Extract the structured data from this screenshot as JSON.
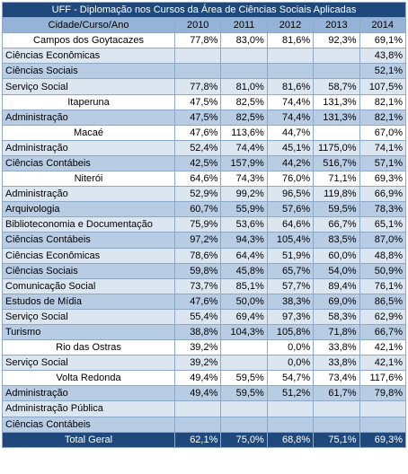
{
  "title": "UFF - Diplomação nos Cursos da Área de Ciências Sociais Aplicadas",
  "header": [
    "Cidade/Curso/Ano",
    "2010",
    "2011",
    "2012",
    "2013",
    "2014"
  ],
  "cities": [
    {
      "name": "Campos dos Goytacazes",
      "values": [
        "77,8%",
        "83,0%",
        "81,6%",
        "92,3%",
        "69,1%"
      ],
      "courses": [
        {
          "name": "Ciências Econômicas",
          "values": [
            null,
            null,
            null,
            null,
            "43,8%"
          ]
        },
        {
          "name": "Ciências Sociais",
          "values": [
            null,
            null,
            null,
            null,
            "52,1%"
          ]
        },
        {
          "name": "Serviço Social",
          "values": [
            "77,8%",
            "81,0%",
            "81,6%",
            "58,7%",
            "107,5%"
          ]
        }
      ]
    },
    {
      "name": "Itaperuna",
      "values": [
        "47,5%",
        "82,5%",
        "74,4%",
        "131,3%",
        "82,1%"
      ],
      "courses": [
        {
          "name": "Administração",
          "values": [
            "47,5%",
            "82,5%",
            "74,4%",
            "131,3%",
            "82,1%"
          ]
        }
      ]
    },
    {
      "name": "Macaé",
      "values": [
        "47,6%",
        "113,6%",
        "44,7%",
        null,
        "67,0%"
      ],
      "courses": [
        {
          "name": "Administração",
          "values": [
            "52,4%",
            "74,4%",
            "45,1%",
            "1175,0%",
            "74,1%"
          ]
        },
        {
          "name": "Ciências Contábeis",
          "values": [
            "42,5%",
            "157,9%",
            "44,2%",
            "516,7%",
            "57,1%"
          ]
        }
      ]
    },
    {
      "name": "Niterói",
      "values": [
        "64,6%",
        "74,3%",
        "76,0%",
        "71,1%",
        "69,3%"
      ],
      "courses": [
        {
          "name": "Administração",
          "values": [
            "52,9%",
            "99,2%",
            "96,5%",
            "119,8%",
            "66,9%"
          ]
        },
        {
          "name": "Arquivologia",
          "values": [
            "60,7%",
            "55,9%",
            "57,6%",
            "59,5%",
            "78,3%"
          ]
        },
        {
          "name": "Biblioteconomia e Documentação",
          "values": [
            "75,9%",
            "53,6%",
            "64,6%",
            "66,7%",
            "65,1%"
          ]
        },
        {
          "name": "Ciências Contábeis",
          "values": [
            "97,2%",
            "94,3%",
            "105,4%",
            "83,5%",
            "87,0%"
          ]
        },
        {
          "name": "Ciências Econômicas",
          "values": [
            "78,6%",
            "64,4%",
            "51,9%",
            "60,0%",
            "48,8%"
          ]
        },
        {
          "name": "Ciências Sociais",
          "values": [
            "59,8%",
            "45,8%",
            "65,7%",
            "54,0%",
            "50,9%"
          ]
        },
        {
          "name": "Comunicação Social",
          "values": [
            "73,7%",
            "85,1%",
            "57,7%",
            "89,4%",
            "76,1%"
          ]
        },
        {
          "name": "Estudos de Mídia",
          "values": [
            "47,6%",
            "50,0%",
            "38,3%",
            "69,0%",
            "86,5%"
          ]
        },
        {
          "name": "Serviço Social",
          "values": [
            "55,4%",
            "69,4%",
            "97,3%",
            "58,3%",
            "62,9%"
          ]
        },
        {
          "name": "Turismo",
          "values": [
            "38,8%",
            "104,3%",
            "105,8%",
            "71,8%",
            "66,7%"
          ]
        }
      ]
    },
    {
      "name": "Rio das Ostras",
      "values": [
        "39,2%",
        null,
        "0,0%",
        "33,8%",
        "42,1%"
      ],
      "courses": [
        {
          "name": "Serviço Social",
          "values": [
            "39,2%",
            null,
            "0,0%",
            "33,8%",
            "42,1%"
          ]
        }
      ]
    },
    {
      "name": "Volta Redonda",
      "values": [
        "49,4%",
        "59,5%",
        "54,7%",
        "73,4%",
        "117,6%"
      ],
      "courses": [
        {
          "name": "Administração",
          "values": [
            "49,4%",
            "59,5%",
            "51,2%",
            "61,7%",
            "79,8%"
          ]
        },
        {
          "name": "Administração Pública",
          "values": [
            null,
            null,
            null,
            null,
            null
          ]
        },
        {
          "name": "Ciências Contábeis",
          "values": [
            null,
            null,
            null,
            null,
            null
          ]
        }
      ]
    }
  ],
  "total": {
    "name": "Total Geral",
    "values": [
      "62,1%",
      "75,0%",
      "68,8%",
      "75,1%",
      "69,3%"
    ]
  }
}
